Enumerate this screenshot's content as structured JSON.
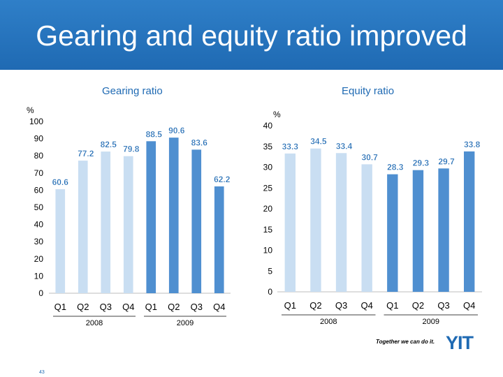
{
  "slide": {
    "title": "Gearing and equity ratio improved",
    "tagline": "Together we can do it.",
    "logo": "YIT",
    "page_number": "43"
  },
  "colors": {
    "header_blue": "#2b78c2",
    "bar_light": "#c9def2",
    "bar_dark": "#4f8fd0",
    "label_blue": "#1f6ab3",
    "axis_text": "#000000"
  },
  "chart_data": [
    {
      "type": "bar",
      "title": "Gearing ratio",
      "ylabel": "%",
      "categories": [
        "Q1",
        "Q2",
        "Q3",
        "Q4",
        "Q1",
        "Q2",
        "Q3",
        "Q4"
      ],
      "groups": [
        "2008",
        "2009"
      ],
      "values": [
        60.6,
        77.2,
        82.5,
        79.8,
        88.5,
        90.6,
        83.6,
        62.2
      ],
      "value_labels": [
        "60.6",
        "77.2",
        "82.5",
        "79.8",
        "88.5",
        "90.6",
        "83.6",
        "62.2"
      ],
      "bar_styles": [
        "light",
        "light",
        "light",
        "light",
        "dark",
        "dark",
        "dark",
        "dark"
      ],
      "ylim": [
        0,
        100
      ],
      "yticks": [
        0,
        10,
        20,
        30,
        40,
        50,
        60,
        70,
        80,
        90,
        100
      ],
      "grid": false
    },
    {
      "type": "bar",
      "title": "Equity ratio",
      "ylabel": "%",
      "categories": [
        "Q1",
        "Q2",
        "Q3",
        "Q4",
        "Q1",
        "Q2",
        "Q3",
        "Q4"
      ],
      "groups": [
        "2008",
        "2009"
      ],
      "values": [
        33.3,
        34.5,
        33.4,
        30.7,
        28.3,
        29.3,
        29.7,
        33.8
      ],
      "value_labels": [
        "33.3",
        "34.5",
        "33.4",
        "30.7",
        "28.3",
        "29.3",
        "29.7",
        "33.8"
      ],
      "bar_styles": [
        "light",
        "light",
        "light",
        "light",
        "dark",
        "dark",
        "dark",
        "dark"
      ],
      "ylim": [
        0,
        40
      ],
      "yticks": [
        0,
        5,
        10,
        15,
        20,
        25,
        30,
        35,
        40
      ],
      "grid": false
    }
  ]
}
